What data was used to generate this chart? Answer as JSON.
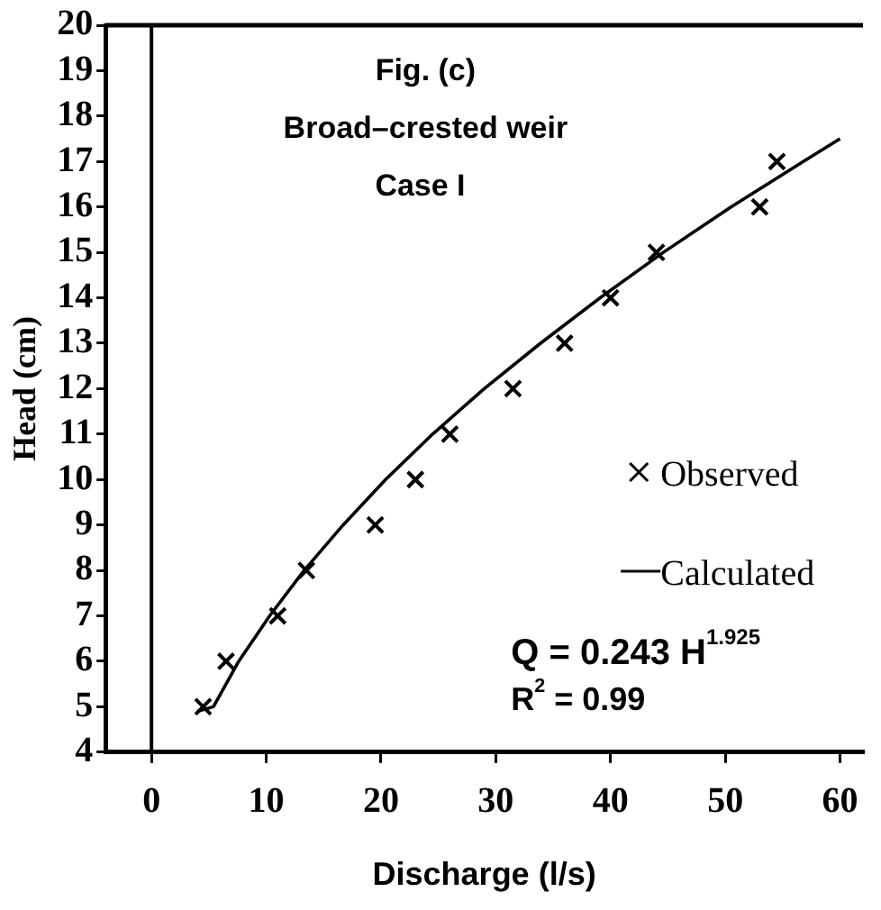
{
  "chart_data": {
    "type": "scatter",
    "title": "Fig. (c)",
    "subtitle": "Broad–crested weir",
    "xlabel": "Discharge (l/s)",
    "ylabel": "Head (cm)",
    "annotations": [
      "Case I",
      "Q = 0.243 H$^{1.925}$",
      "R$^{2}$ = 0.99"
    ],
    "xlim": [
      -4,
      62
    ],
    "xticks": [
      0,
      10,
      20,
      30,
      40,
      50,
      60
    ],
    "ylim": [
      4,
      20
    ],
    "yticks": [
      4,
      5,
      6,
      7,
      8,
      9,
      10,
      11,
      12,
      13,
      14,
      15,
      16,
      17,
      18,
      19,
      20
    ],
    "grid": false,
    "legend": "right",
    "ref_lines": [
      {
        "axis": "x",
        "value": 0,
        "color": "#000000"
      }
    ],
    "series": [
      {
        "name": "Observed",
        "type": "scatter",
        "marker": "cross",
        "color": "#000000",
        "x": [
          4.5,
          6.5,
          11,
          13.5,
          19.5,
          23,
          26,
          31.5,
          36,
          40,
          44,
          53,
          54.5
        ],
        "values": [
          5,
          6,
          7,
          8,
          9,
          10,
          11,
          12,
          13,
          14,
          15,
          16,
          17
        ]
      },
      {
        "name": "Calculated",
        "type": "line",
        "marker": "none",
        "line_style": "solid",
        "color": "#000000",
        "x": [
          4,
          5.4,
          7.6,
          10.3,
          13.3,
          16.7,
          20.4,
          24.5,
          29,
          33.9,
          39.1,
          44.6,
          50.5,
          56.8,
          60
        ],
        "values": [
          4.9,
          5,
          6,
          7,
          8,
          9,
          10,
          11,
          12,
          13,
          14,
          15,
          16,
          17,
          17.5
        ]
      }
    ]
  }
}
